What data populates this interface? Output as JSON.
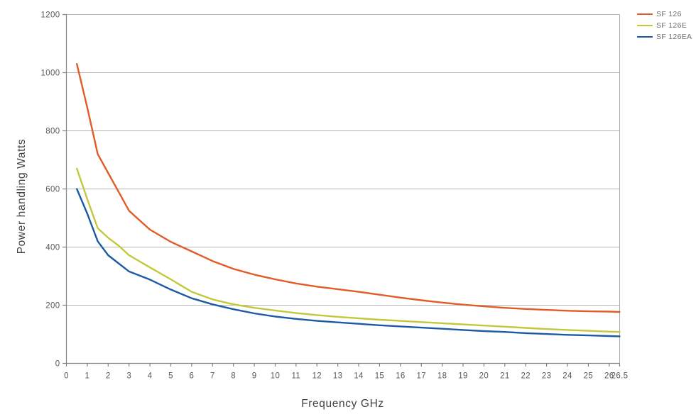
{
  "chart_data": {
    "type": "line",
    "title": "",
    "xlabel": "Frequency GHz",
    "ylabel": "Power handling Watts",
    "xlim": [
      0,
      26.5
    ],
    "ylim": [
      0,
      1200
    ],
    "grid": "horizontal",
    "legend_position": "top-right-outside",
    "x": [
      0.5,
      1,
      1.5,
      2,
      2.5,
      3,
      4,
      5,
      6,
      7,
      8,
      9,
      10,
      11,
      12,
      13,
      14,
      15,
      16,
      17,
      18,
      19,
      20,
      21,
      22,
      23,
      24,
      25,
      26,
      26.5
    ],
    "series": [
      {
        "name": "SF 126",
        "color": "#E25B28",
        "values": [
          1030,
          880,
          720,
          655,
          590,
          525,
          460,
          418,
          385,
          352,
          325,
          305,
          289,
          275,
          264,
          255,
          246,
          236,
          226,
          217,
          209,
          202,
          196,
          191,
          187,
          184,
          181,
          179,
          178,
          177
        ]
      },
      {
        "name": "SF 126E",
        "color": "#C1C93B",
        "values": [
          670,
          565,
          465,
          432,
          405,
          372,
          330,
          289,
          246,
          220,
          203,
          191,
          182,
          173,
          166,
          160,
          155,
          150,
          146,
          142,
          138,
          134,
          130,
          126,
          122,
          118,
          115,
          112,
          109,
          108
        ]
      },
      {
        "name": "SF 126EA",
        "color": "#1C5BA4",
        "values": [
          600,
          515,
          420,
          372,
          344,
          316,
          288,
          254,
          224,
          203,
          186,
          172,
          161,
          153,
          146,
          141,
          136,
          131,
          127,
          123,
          119,
          115,
          111,
          108,
          104,
          101,
          98,
          96,
          94,
          93
        ]
      }
    ],
    "y_ticks": [
      0,
      200,
      400,
      600,
      800,
      1000,
      1200
    ],
    "y_tick_labels": [
      "0",
      "200",
      "400",
      "600",
      "800",
      "1000",
      "1200"
    ],
    "x_tick_values": [
      0,
      1,
      2,
      3,
      4,
      5,
      6,
      7,
      8,
      9,
      10,
      11,
      12,
      13,
      14,
      15,
      16,
      17,
      18,
      19,
      20,
      21,
      22,
      23,
      24,
      25,
      26,
      26.5
    ],
    "x_tick_labels": [
      "0",
      "1",
      "2",
      "3",
      "4",
      "5",
      "6",
      "7",
      "8",
      "9",
      "10",
      "11",
      "12",
      "13",
      "14",
      "15",
      "16",
      "17",
      "18",
      "19",
      "20",
      "21",
      "22",
      "23",
      "24",
      "25",
      "26",
      "26.5"
    ]
  },
  "colors": {
    "background": "#FFFFFF",
    "gridline": "#B4B6B8",
    "axis_line": "#808285",
    "border_line": "#A7A9AC",
    "tick_text": "#58595B",
    "axis_title_text": "#414042",
    "legend_text": "#6D6E71"
  }
}
